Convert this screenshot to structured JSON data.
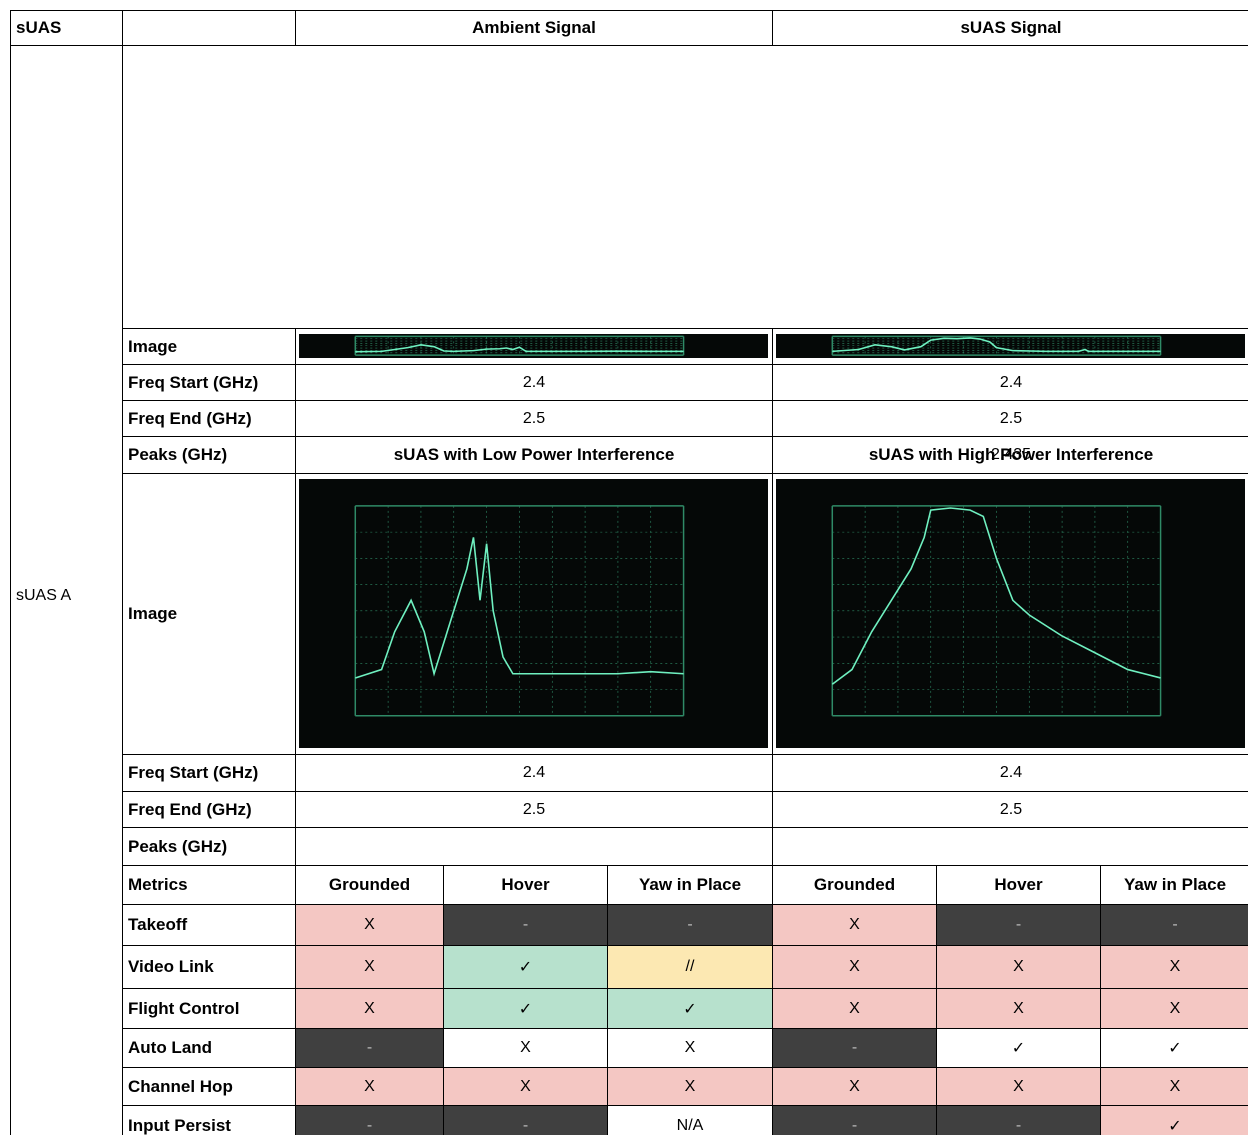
{
  "header": {
    "corner": "sUAS",
    "ambient": "Ambient Signal",
    "suas_signal": "sUAS Signal"
  },
  "suas_name": "sUAS A",
  "sections": [
    {
      "headings": null,
      "image_label": "Image",
      "rows": [
        {
          "label": "Freq Start (GHz)",
          "left": "2.4",
          "right": "2.4"
        },
        {
          "label": "Freq End (GHz)",
          "left": "2.5",
          "right": "2.5"
        },
        {
          "label": "Peaks (GHz)",
          "left": null,
          "right": "2.435"
        }
      ]
    },
    {
      "headings": {
        "left": "sUAS with Low Power Interference",
        "right": "sUAS with High Power Interference"
      },
      "image_label": "Image",
      "rows": [
        {
          "label": "Freq Start (GHz)",
          "left": "2.4",
          "right": "2.4"
        },
        {
          "label": "Freq End (GHz)",
          "left": "2.5",
          "right": "2.5"
        },
        {
          "label": "Peaks (GHz)",
          "left": null,
          "right": null
        }
      ]
    }
  ],
  "metrics": {
    "label": "Metrics",
    "columns": [
      "Grounded",
      "Hover",
      "Yaw in Place",
      "Grounded",
      "Hover",
      "Yaw in Place"
    ],
    "rows": [
      {
        "label": "Takeoff",
        "cells": [
          "X",
          "-",
          "-",
          "X",
          "-",
          "-"
        ],
        "fills": [
          "#f4c7c3",
          "#404040",
          "#404040",
          "#f4c7c3",
          "#404040",
          "#404040"
        ]
      },
      {
        "label": "Video Link",
        "cells": [
          "X",
          "✓",
          "//",
          "X",
          "X",
          "X"
        ],
        "fills": [
          "#f4c7c3",
          "#b7e1cd",
          "#fce8b2",
          "#f4c7c3",
          "#f4c7c3",
          "#f4c7c3"
        ]
      },
      {
        "label": "Flight Control",
        "cells": [
          "X",
          "✓",
          "✓",
          "X",
          "X",
          "X"
        ],
        "fills": [
          "#f4c7c3",
          "#b7e1cd",
          "#b7e1cd",
          "#f4c7c3",
          "#f4c7c3",
          "#f4c7c3"
        ]
      },
      {
        "label": "Auto Land",
        "cells": [
          "-",
          "X",
          "X",
          "-",
          "✓",
          "✓"
        ],
        "fills": [
          "#404040",
          "#ffffff",
          "#ffffff",
          "#404040",
          "#ffffff",
          "#ffffff"
        ]
      },
      {
        "label": "Channel Hop",
        "cells": [
          "X",
          "X",
          "X",
          "X",
          "X",
          "X"
        ],
        "fills": [
          "#f4c7c3",
          "#f4c7c3",
          "#f4c7c3",
          "#f4c7c3",
          "#f4c7c3",
          "#f4c7c3"
        ]
      },
      {
        "label": "Input Persist",
        "cells": [
          "-",
          "-",
          "N/A",
          "-",
          "-",
          "✓"
        ],
        "fills": [
          "#404040",
          "#404040",
          "#ffffff",
          "#404040",
          "#404040",
          "#f4c7c3"
        ]
      }
    ]
  }
}
